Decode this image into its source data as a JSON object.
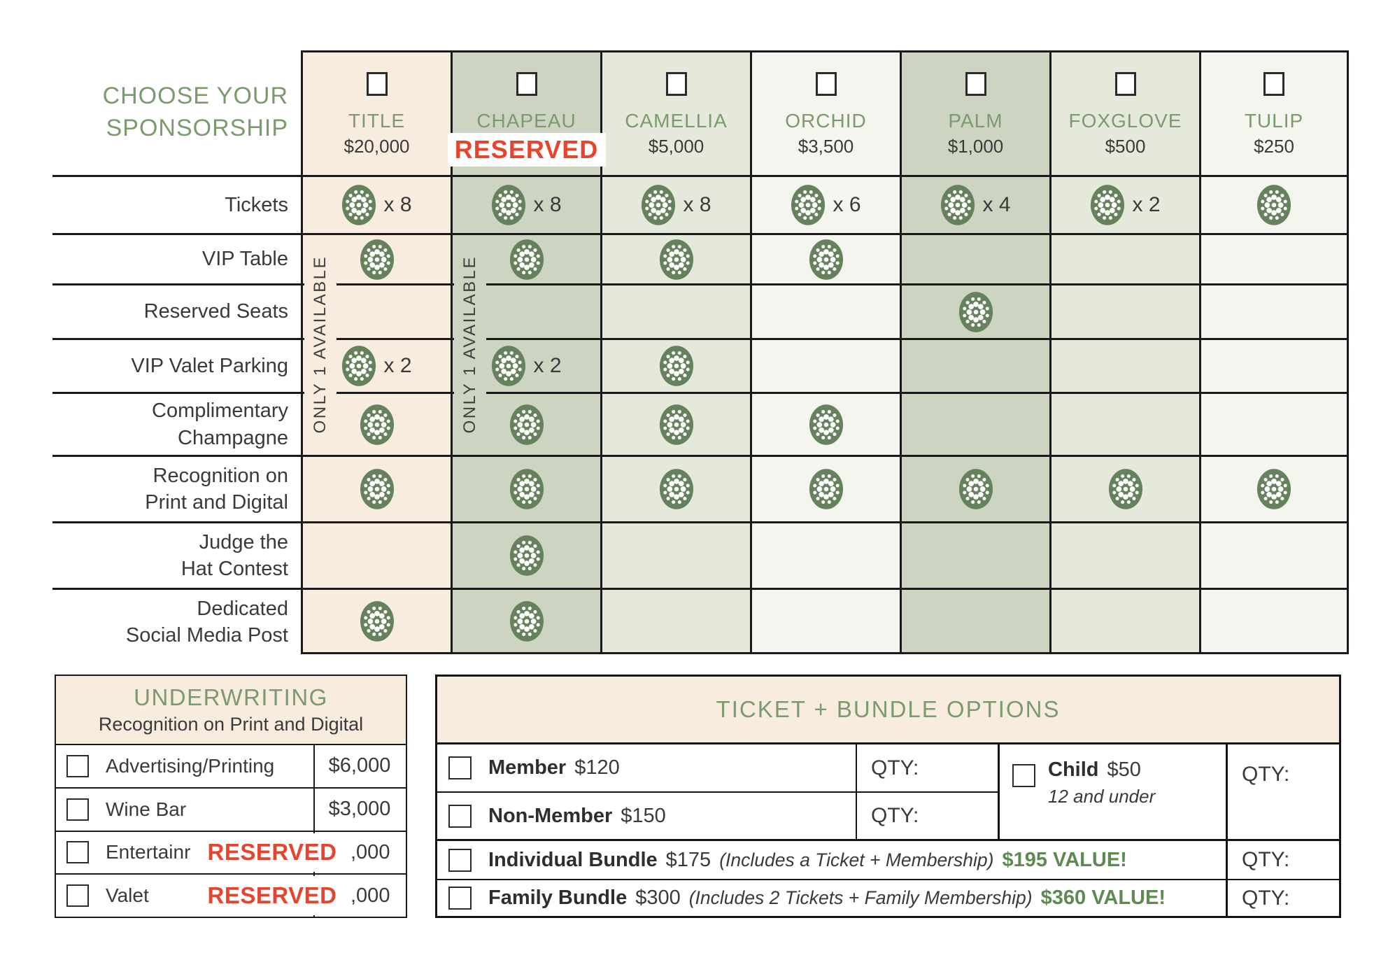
{
  "main_table": {
    "title_lines": [
      "CHOOSE YOUR",
      "SPONSORSHIP"
    ],
    "only_one_label": "ONLY 1 AVAILABLE",
    "reserved_label": "RESERVED",
    "columns": [
      {
        "name": "TITLE",
        "price": "$20,000",
        "bg": "#f8ecdf",
        "reserved": false,
        "only_one": true
      },
      {
        "name": "CHAPEAU",
        "price": "",
        "bg": "#cdd5c2",
        "reserved": true,
        "only_one": true
      },
      {
        "name": "CAMELLIA",
        "price": "$5,000",
        "bg": "#e4e9db",
        "reserved": false
      },
      {
        "name": "ORCHID",
        "price": "$3,500",
        "bg": "#f3f5ee",
        "reserved": false
      },
      {
        "name": "PALM",
        "price": "$1,000",
        "bg": "#cdd5c2",
        "reserved": false
      },
      {
        "name": "FOXGLOVE",
        "price": "$500",
        "bg": "#e4e9db",
        "reserved": false
      },
      {
        "name": "TULIP",
        "price": "$250",
        "bg": "#f3f5ee",
        "reserved": false
      }
    ],
    "rows": [
      {
        "label_lines": [
          "Tickets"
        ],
        "cells": [
          "x 8",
          "x 8",
          "x 8",
          "x 6",
          "x 4",
          "x 2",
          ""
        ]
      },
      {
        "label_lines": [
          "VIP Table"
        ],
        "cells": [
          "",
          "",
          "",
          "",
          null,
          null,
          null
        ]
      },
      {
        "label_lines": [
          "Reserved Seats"
        ],
        "cells": [
          null,
          null,
          null,
          null,
          "",
          null,
          null
        ]
      },
      {
        "label_lines": [
          "VIP Valet Parking"
        ],
        "cells": [
          "x 2",
          "x 2",
          "",
          null,
          null,
          null,
          null
        ]
      },
      {
        "label_lines": [
          "Complimentary",
          "Champagne"
        ],
        "cells": [
          "",
          "",
          "",
          "",
          null,
          null,
          null
        ]
      },
      {
        "label_lines": [
          "Recognition on",
          "Print and Digital"
        ],
        "cells": [
          "",
          "",
          "",
          "",
          "",
          "",
          ""
        ]
      },
      {
        "label_lines": [
          "Judge the",
          "Hat Contest"
        ],
        "cells": [
          null,
          "",
          null,
          null,
          null,
          null,
          null
        ]
      },
      {
        "label_lines": [
          "Dedicated",
          "Social Media Post"
        ],
        "cells": [
          "",
          "",
          null,
          null,
          null,
          null,
          null
        ]
      }
    ]
  },
  "underwriting": {
    "title": "UNDERWRITING",
    "subtitle": "Recognition on Print and Digital",
    "reserved_label": "RESERVED",
    "rows": [
      {
        "label": "Advertising/Printing",
        "price": "$6,000",
        "reserved": false
      },
      {
        "label": "Wine Bar",
        "price": "$3,000",
        "reserved": false
      },
      {
        "label": "Entertainr",
        "price": ",000",
        "reserved": true
      },
      {
        "label": "Valet",
        "price": ",000",
        "reserved": true
      }
    ]
  },
  "tickets_box": {
    "title": "TICKET + BUNDLE OPTIONS",
    "qty_label": "QTY:",
    "member": {
      "label": "Member",
      "price": "$120"
    },
    "non_member": {
      "label": "Non-Member",
      "price": "$150"
    },
    "child": {
      "label": "Child",
      "price": "$50",
      "note": "12 and under"
    },
    "individual": {
      "label": "Individual Bundle",
      "price": "$175",
      "includes": "(Includes a Ticket + Membership)",
      "value": "$195 VALUE!"
    },
    "family": {
      "label": "Family Bundle",
      "price": "$300",
      "includes": "(Includes 2 Tickets + Family Membership)",
      "value": "$360 VALUE!"
    }
  }
}
